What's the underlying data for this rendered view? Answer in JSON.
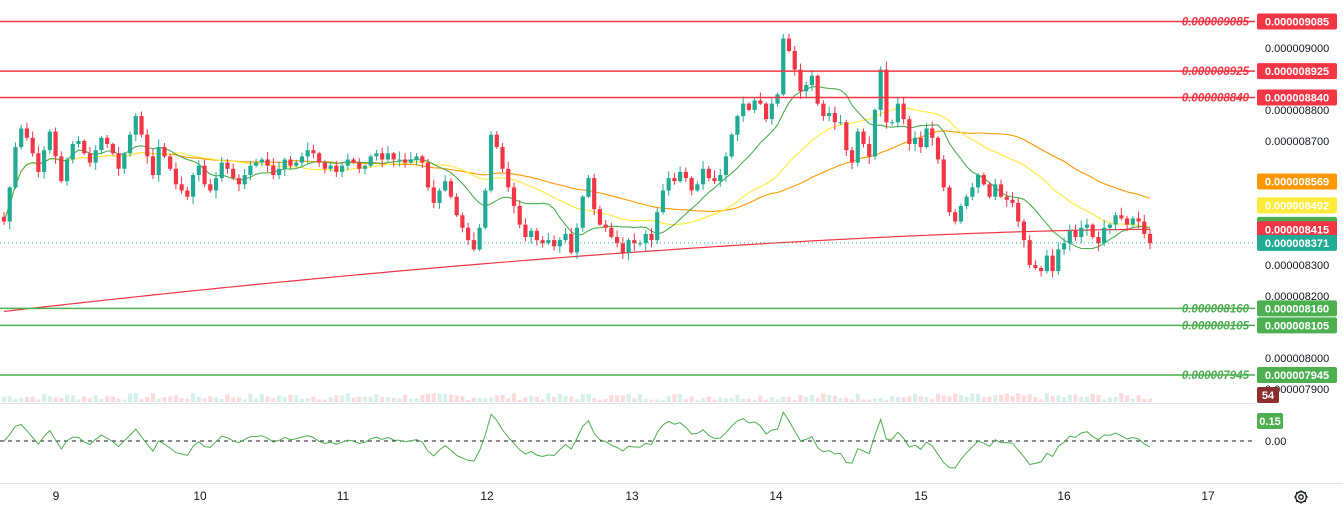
{
  "chart_data": {
    "type": "candlestick",
    "x_tick_labels": [
      "9",
      "10",
      "11",
      "12",
      "13",
      "14",
      "15",
      "16",
      "17"
    ],
    "price_axis_labels": [
      "0.000009000",
      "0.000008800",
      "0.000008700",
      "0.000008300",
      "0.000008200",
      "0.000008000",
      "0.000007900"
    ],
    "price_range": [
      7.89e-06,
      9.1e-06
    ],
    "resistance_levels": [
      "0.000009085",
      "0.000008925",
      "0.000008840"
    ],
    "support_levels": [
      "0.000008160",
      "0.000008105",
      "0.000007945"
    ],
    "last_price": "0.000008371",
    "moving_average_values": {
      "ma_orange": "0.000008569",
      "ma_yellow": "0.000008492",
      "ma_green": "0.000008429",
      "ma_red": "0.000008415"
    },
    "candles_close": [
      8.44e-06,
      8.55e-06,
      8.68e-06,
      8.74e-06,
      8.71e-06,
      8.66e-06,
      8.6e-06,
      8.67e-06,
      8.73e-06,
      8.65e-06,
      8.57e-06,
      8.64e-06,
      8.69e-06,
      8.7e-06,
      8.66e-06,
      8.63e-06,
      8.67e-06,
      8.71e-06,
      8.69e-06,
      8.66e-06,
      8.61e-06,
      8.66e-06,
      8.72e-06,
      8.78e-06,
      8.72e-06,
      8.65e-06,
      8.59e-06,
      8.68e-06,
      8.65e-06,
      8.61e-06,
      8.56e-06,
      8.54e-06,
      8.52e-06,
      8.59e-06,
      8.62e-06,
      8.56e-06,
      8.54e-06,
      8.58e-06,
      8.63e-06,
      8.61e-06,
      8.58e-06,
      8.56e-06,
      8.59e-06,
      8.62e-06,
      8.63e-06,
      8.64e-06,
      8.62e-06,
      8.59e-06,
      8.61e-06,
      8.64e-06,
      8.62e-06,
      8.63e-06,
      8.65e-06,
      8.67e-06,
      8.66e-06,
      8.63e-06,
      8.61e-06,
      8.62e-06,
      8.6e-06,
      8.62e-06,
      8.64e-06,
      8.63e-06,
      8.61e-06,
      8.62e-06,
      8.65e-06,
      8.66e-06,
      8.64e-06,
      8.66e-06,
      8.64e-06,
      8.64e-06,
      8.63e-06,
      8.64e-06,
      8.65e-06,
      8.63e-06,
      8.55e-06,
      8.5e-06,
      8.54e-06,
      8.57e-06,
      8.52e-06,
      8.46e-06,
      8.42e-06,
      8.38e-06,
      8.35e-06,
      8.42e-06,
      8.54e-06,
      8.72e-06,
      8.68e-06,
      8.61e-06,
      8.55e-06,
      8.49e-06,
      8.43e-06,
      8.39e-06,
      8.41e-06,
      8.38e-06,
      8.37e-06,
      8.38e-06,
      8.36e-06,
      8.38e-06,
      8.4e-06,
      8.34e-06,
      8.42e-06,
      8.52e-06,
      8.58e-06,
      8.48e-06,
      8.43e-06,
      8.42e-06,
      8.39e-06,
      8.37e-06,
      8.34e-06,
      8.38e-06,
      8.37e-06,
      8.37e-06,
      8.4e-06,
      8.38e-06,
      8.47e-06,
      8.54e-06,
      8.58e-06,
      8.57e-06,
      8.6e-06,
      8.58e-06,
      8.54e-06,
      8.56e-06,
      8.61e-06,
      8.58e-06,
      8.57e-06,
      8.59e-06,
      8.65e-06,
      8.72e-06,
      8.78e-06,
      8.82e-06,
      8.8e-06,
      8.83e-06,
      8.82e-06,
      8.77e-06,
      8.82e-06,
      8.85e-06,
      9.03e-06,
      8.99e-06,
      8.93e-06,
      8.86e-06,
      8.88e-06,
      8.91e-06,
      8.82e-06,
      8.78e-06,
      8.79e-06,
      8.76e-06,
      8.76e-06,
      8.67e-06,
      8.63e-06,
      8.73e-06,
      8.69e-06,
      8.65e-06,
      8.8e-06,
      8.93e-06,
      8.76e-06,
      8.76e-06,
      8.82e-06,
      8.77e-06,
      8.69e-06,
      8.71e-06,
      8.68e-06,
      8.74e-06,
      8.71e-06,
      8.64e-06,
      8.55e-06,
      8.47e-06,
      8.44e-06,
      8.49e-06,
      8.52e-06,
      8.55e-06,
      8.59e-06,
      8.56e-06,
      8.52e-06,
      8.56e-06,
      8.52e-06,
      8.51e-06,
      8.5e-06,
      8.44e-06,
      8.38e-06,
      8.3e-06,
      8.29e-06,
      8.28e-06,
      8.33e-06,
      8.28e-06,
      8.35e-06,
      8.37e-06,
      8.41e-06,
      8.39e-06,
      8.42e-06,
      8.43e-06,
      8.39e-06,
      8.37e-06,
      8.42e-06,
      8.43e-06,
      8.46e-06,
      8.45e-06,
      8.43e-06,
      8.45e-06,
      8.44e-06,
      8.4e-06,
      8.37e-06
    ],
    "oscillator": {
      "volume_badge": "54",
      "value_label": "0.15",
      "zero_label": "0.00"
    }
  },
  "ui": {
    "settings_icon": "gear-icon"
  },
  "colors": {
    "up": "#22ab94",
    "down": "#f23645",
    "resistance": "#f23645",
    "support": "#4caf50",
    "ma_orange": "#ff9800",
    "ma_yellow": "#ffeb3b",
    "ma_green": "#4caf50",
    "ma_red": "#f23645",
    "last_price_badge": "#22ab94",
    "volume_badge": "#8b2e2e",
    "oscillator_line": "#4caf50",
    "oscillator_badge": "#4caf50"
  }
}
